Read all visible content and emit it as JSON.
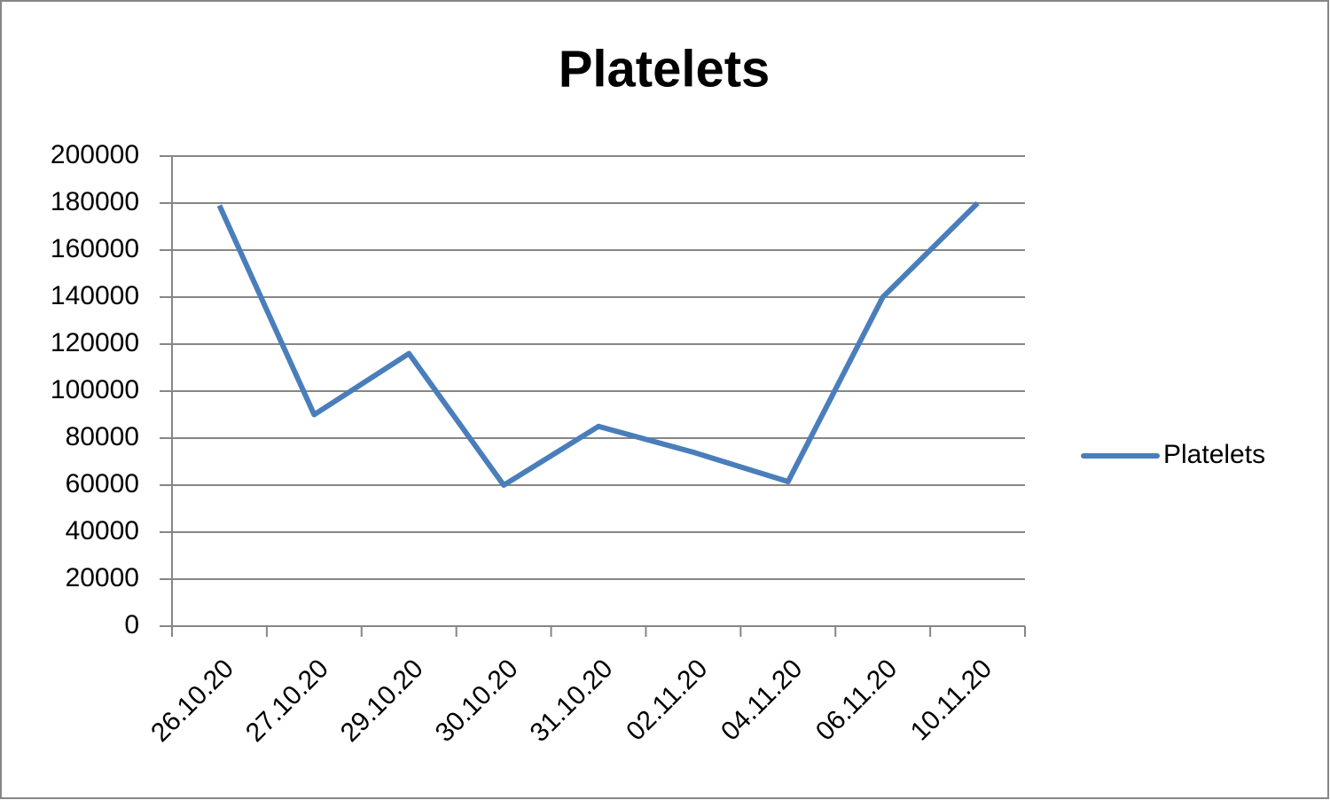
{
  "chart_data": {
    "type": "line",
    "title": "Platelets",
    "categories": [
      "26.10.20",
      "27.10.20",
      "29.10.20",
      "30.10.20",
      "31.10.20",
      "02.11.20",
      "04.11.20",
      "06.11.20",
      "10.11.20"
    ],
    "series": [
      {
        "name": "Platelets",
        "color": "#4a7ebb",
        "values": [
          179000,
          90000,
          116000,
          60000,
          85000,
          74000,
          61500,
          140000,
          180000
        ]
      }
    ],
    "ylim": [
      0,
      200000
    ],
    "yticks": [
      0,
      20000,
      40000,
      60000,
      80000,
      100000,
      120000,
      140000,
      160000,
      180000,
      200000
    ],
    "grid": true,
    "legend": "right"
  }
}
